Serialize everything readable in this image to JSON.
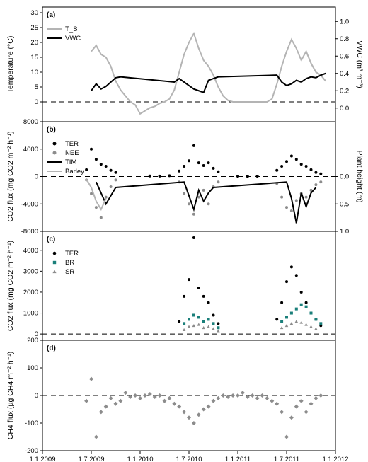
{
  "figure": {
    "x_tick_labels": [
      "1.1.2009",
      "1.7.2009",
      "1.1.2010",
      "1.7.2010",
      "1.1.2011",
      "1.7.2011",
      "1.1.2012"
    ]
  },
  "colors": {
    "black": "#000000",
    "gray": "#8c8c8c",
    "light_gray": "#b4b4b4",
    "teal": "#1a7f7a"
  },
  "chart_data": [
    {
      "panel": "(a)",
      "type": "line",
      "ylabel": "Temperature (°C)",
      "ylabel_right": "VWC (m³ m⁻³)",
      "ylim": [
        -5,
        30
      ],
      "ylim_right": [
        -0.1,
        1.1
      ],
      "yticks": [
        0,
        5,
        10,
        15,
        20,
        25,
        30
      ],
      "yticks_right": [
        "0.0",
        "0.2",
        "0.4",
        "0.6",
        "0.8",
        "1.0"
      ],
      "legend": [
        "T_S",
        "VWC"
      ],
      "series": [
        {
          "name": "T_S",
          "color": "#b4b4b4",
          "x": [
            2009.5,
            2009.55,
            2009.6,
            2009.65,
            2009.7,
            2009.75,
            2009.8,
            2009.85,
            2009.9,
            2009.95,
            2010.0,
            2010.05,
            2010.1,
            2010.15,
            2010.2,
            2010.25,
            2010.3,
            2010.35,
            2010.4,
            2010.45,
            2010.5,
            2010.55,
            2010.6,
            2010.65,
            2010.7,
            2010.75,
            2010.8,
            2010.85,
            2010.9,
            2010.95,
            2011.0,
            2011.05,
            2011.1,
            2011.15,
            2011.2,
            2011.25,
            2011.3,
            2011.35,
            2011.4,
            2011.45,
            2011.5,
            2011.55,
            2011.6,
            2011.65,
            2011.7,
            2011.75,
            2011.8,
            2011.85,
            2011.9
          ],
          "values": [
            17,
            19,
            16,
            15,
            12,
            7,
            4,
            2,
            0,
            -1,
            -4,
            -3,
            -2,
            -1.5,
            -0.5,
            0,
            1,
            4,
            10,
            16,
            20,
            23,
            18,
            14,
            12,
            9,
            5,
            2,
            0.5,
            0,
            0,
            0,
            0,
            0,
            0,
            0,
            0,
            1,
            6,
            12,
            17,
            21,
            18,
            14,
            17,
            13,
            10,
            9,
            7
          ]
        },
        {
          "name": "VWC",
          "color": "#000000",
          "x": [
            2009.5,
            2009.55,
            2009.6,
            2009.65,
            2009.7,
            2009.75,
            2009.8,
            2010.35,
            2010.4,
            2010.45,
            2010.5,
            2010.55,
            2010.6,
            2010.65,
            2010.7,
            2010.75,
            2010.8,
            2011.4,
            2011.45,
            2011.5,
            2011.55,
            2011.6,
            2011.65,
            2011.7,
            2011.75,
            2011.8,
            2011.85,
            2011.9
          ],
          "values": [
            0.2,
            0.28,
            0.22,
            0.25,
            0.3,
            0.35,
            0.36,
            0.3,
            0.34,
            0.3,
            0.26,
            0.22,
            0.2,
            0.18,
            0.32,
            0.34,
            0.36,
            0.38,
            0.3,
            0.26,
            0.28,
            0.32,
            0.3,
            0.34,
            0.36,
            0.35,
            0.38,
            0.4
          ]
        }
      ]
    },
    {
      "panel": "(b)",
      "type": "scatter",
      "ylabel": "CO2 flux (mg CO2 m⁻² h⁻¹)",
      "ylabel_right": "Plant height (m)",
      "ylim": [
        -8000,
        8000
      ],
      "yticks": [
        -8000,
        -4000,
        0,
        4000,
        8000
      ],
      "yticks_right": [
        "0.0",
        "0.5",
        "1.0"
      ],
      "legend": [
        "TER",
        "NEE",
        "TIM",
        "Barley"
      ],
      "series": [
        {
          "name": "TER",
          "color": "#000000",
          "x": [
            2009.45,
            2009.5,
            2009.55,
            2009.6,
            2009.65,
            2009.7,
            2009.75,
            2010.1,
            2010.2,
            2010.3,
            2010.4,
            2010.45,
            2010.5,
            2010.55,
            2010.6,
            2010.65,
            2010.7,
            2010.75,
            2010.8,
            2011.0,
            2011.1,
            2011.2,
            2011.4,
            2011.45,
            2011.5,
            2011.55,
            2011.6,
            2011.65,
            2011.7,
            2011.75,
            2011.8,
            2011.85
          ],
          "values": [
            1000,
            4000,
            2500,
            1800,
            1500,
            900,
            600,
            80,
            60,
            120,
            800,
            1500,
            2300,
            4500,
            2000,
            1600,
            2000,
            1200,
            700,
            40,
            30,
            50,
            900,
            1500,
            2200,
            3000,
            2500,
            1800,
            1500,
            1000,
            600,
            400
          ]
        },
        {
          "name": "NEE",
          "color": "#8c8c8c",
          "x": [
            2009.45,
            2009.5,
            2009.55,
            2009.6,
            2009.65,
            2009.7,
            2009.75,
            2010.4,
            2010.45,
            2010.5,
            2010.55,
            2010.6,
            2010.65,
            2010.7,
            2010.75,
            2010.8,
            2011.4,
            2011.45,
            2011.5,
            2011.55,
            2011.6,
            2011.65,
            2011.7,
            2011.75,
            2011.8,
            2011.85
          ],
          "values": [
            -500,
            -2500,
            -4500,
            -6000,
            -3000,
            -1500,
            -500,
            -800,
            -2500,
            -4000,
            -5500,
            -3000,
            -2000,
            -4000,
            -1500,
            -800,
            -1000,
            -3000,
            -4500,
            -5000,
            -3500,
            -2500,
            -3000,
            -2000,
            -1200,
            -800
          ]
        },
        {
          "name": "TIM",
          "color": "#000000",
          "x": [
            2009.55,
            2009.6,
            2009.65,
            2009.7,
            2009.75,
            2010.45,
            2010.5,
            2010.55,
            2010.6,
            2010.65,
            2010.7,
            2010.75,
            2011.5,
            2011.55,
            2011.6,
            2011.65,
            2011.7,
            2011.75,
            2011.8
          ],
          "values": [
            -0.1,
            -0.3,
            -0.5,
            -0.35,
            -0.2,
            -0.1,
            -0.35,
            -0.6,
            -0.25,
            -0.45,
            -0.3,
            -0.2,
            -0.1,
            -0.4,
            -0.85,
            -0.3,
            -0.55,
            -0.3,
            -0.2
          ]
        },
        {
          "name": "Barley",
          "color": "#b4b4b4",
          "x": [
            2009.45,
            2009.5,
            2009.55,
            2009.6,
            2009.65
          ],
          "values": [
            -0.05,
            -0.2,
            -0.45,
            -0.6,
            -0.4
          ]
        }
      ]
    },
    {
      "panel": "(c)",
      "type": "scatter",
      "ylabel": "CO2 flux (mg CO2 m⁻² h⁻¹)",
      "ylim": [
        -300,
        4600
      ],
      "yticks": [
        0,
        1000,
        2000,
        3000,
        4000
      ],
      "legend": [
        "TER",
        "BR",
        "SR"
      ],
      "series": [
        {
          "name": "TER",
          "color": "#000000",
          "x": [
            2010.4,
            2010.45,
            2010.5,
            2010.55,
            2010.6,
            2010.65,
            2010.7,
            2010.75,
            2010.8,
            2011.4,
            2011.45,
            2011.5,
            2011.55,
            2011.6,
            2011.65,
            2011.7,
            2011.75,
            2011.8,
            2011.85
          ],
          "values": [
            600,
            1800,
            2600,
            4600,
            2200,
            1800,
            1500,
            900,
            500,
            700,
            1500,
            2500,
            3200,
            2800,
            2000,
            1500,
            1000,
            700,
            400
          ]
        },
        {
          "name": "BR",
          "color": "#1a7f7a",
          "x": [
            2010.45,
            2010.5,
            2010.55,
            2010.6,
            2010.65,
            2010.7,
            2010.75,
            2010.8,
            2011.45,
            2011.5,
            2011.55,
            2011.6,
            2011.65,
            2011.7,
            2011.75,
            2011.8,
            2011.85
          ],
          "values": [
            500,
            700,
            900,
            800,
            600,
            700,
            500,
            300,
            600,
            800,
            1000,
            1200,
            1400,
            1300,
            1000,
            700,
            500
          ]
        },
        {
          "name": "SR",
          "color": "#8c8c8c",
          "x": [
            2010.45,
            2010.5,
            2010.55,
            2010.6,
            2010.65,
            2010.7,
            2010.75,
            2010.8,
            2011.45,
            2011.5,
            2011.55,
            2011.6,
            2011.65,
            2011.7,
            2011.75,
            2011.8
          ],
          "values": [
            200,
            350,
            400,
            450,
            300,
            350,
            250,
            150,
            300,
            400,
            500,
            600,
            550,
            450,
            350,
            250
          ]
        }
      ]
    },
    {
      "panel": "(d)",
      "type": "scatter",
      "ylabel": "CH4 flux (µg CH4 m⁻² h⁻¹)",
      "ylim": [
        -200,
        200
      ],
      "yticks": [
        -200,
        -100,
        0,
        100,
        200
      ],
      "series": [
        {
          "name": "",
          "color": "#8c8c8c",
          "x": [
            2009.45,
            2009.5,
            2009.55,
            2009.6,
            2009.65,
            2009.7,
            2009.75,
            2009.8,
            2009.85,
            2009.9,
            2009.95,
            2010.0,
            2010.05,
            2010.1,
            2010.15,
            2010.2,
            2010.25,
            2010.3,
            2010.35,
            2010.4,
            2010.45,
            2010.5,
            2010.55,
            2010.6,
            2010.65,
            2010.7,
            2010.75,
            2010.8,
            2010.85,
            2010.9,
            2010.95,
            2011.0,
            2011.05,
            2011.1,
            2011.15,
            2011.2,
            2011.25,
            2011.3,
            2011.35,
            2011.4,
            2011.45,
            2011.5,
            2011.55,
            2011.6,
            2011.65,
            2011.7,
            2011.75,
            2011.8,
            2011.85
          ],
          "values": [
            -20,
            60,
            -150,
            -60,
            -40,
            -10,
            -30,
            -20,
            10,
            -5,
            0,
            -10,
            0,
            5,
            -5,
            0,
            -20,
            -10,
            -30,
            -40,
            -60,
            -80,
            -100,
            -70,
            -50,
            -40,
            -20,
            -10,
            0,
            -5,
            0,
            0,
            10,
            -5,
            0,
            -10,
            0,
            -10,
            -20,
            -30,
            -60,
            -150,
            -80,
            -40,
            -20,
            -60,
            -30,
            -10,
            0
          ]
        }
      ]
    }
  ]
}
